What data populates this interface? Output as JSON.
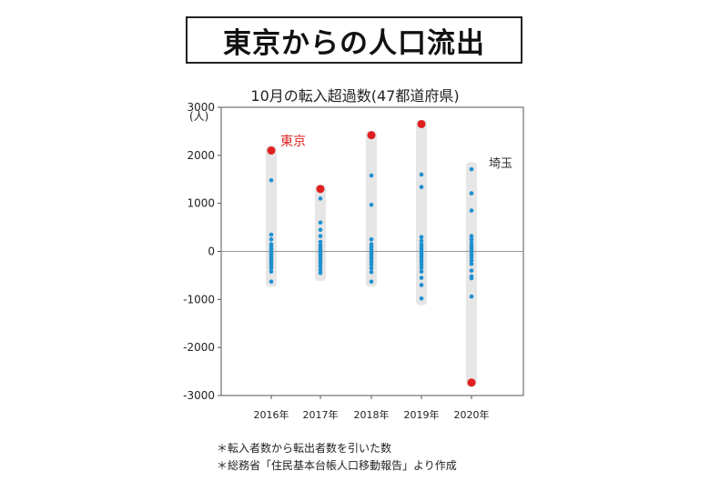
{
  "header": {
    "title": "東京からの人口流出",
    "subtitle": "10月の転入超過数(47都道府県)"
  },
  "chart_data": {
    "type": "scatter",
    "title": "10月の転入超過数(47都道府県)",
    "ylabel": "(人)",
    "xlabel": "",
    "ylim": [
      -3000,
      3000
    ],
    "yticks": [
      3000,
      2000,
      1000,
      0,
      -1000,
      -2000,
      -3000
    ],
    "categories": [
      "2016年",
      "2017年",
      "2018年",
      "2019年",
      "2020年"
    ],
    "grid": false,
    "zero_line": true,
    "range_bars": [
      {
        "category": "2016年",
        "min": -680,
        "max": 2150
      },
      {
        "category": "2017年",
        "min": -560,
        "max": 1330
      },
      {
        "category": "2018年",
        "min": -680,
        "max": 2450
      },
      {
        "category": "2019年",
        "min": -1060,
        "max": 2680
      },
      {
        "category": "2020年",
        "min": -2760,
        "max": 1800
      }
    ],
    "series": [
      {
        "name": "東京",
        "color": "#e02020",
        "values": [
          2100,
          1300,
          2420,
          2650,
          -2730
        ]
      },
      {
        "color": "#1e90d0",
        "points": [
          {
            "category": "2016年",
            "values": [
              1480,
              350,
              250,
              150,
              100,
              50,
              0,
              -30,
              -60,
              -100,
              -140,
              -180,
              -220,
              -260,
              -300,
              -350,
              -420,
              -630
            ]
          },
          {
            "category": "2017年",
            "values": [
              1100,
              600,
              450,
              320,
              200,
              130,
              80,
              30,
              -20,
              -60,
              -100,
              -150,
              -200,
              -260,
              -320,
              -380,
              -450
            ]
          },
          {
            "category": "2018年",
            "values": [
              1580,
              970,
              250,
              150,
              90,
              40,
              -10,
              -50,
              -90,
              -130,
              -170,
              -220,
              -280,
              -350,
              -430,
              -630
            ]
          },
          {
            "category": "2019年",
            "values": [
              1600,
              1340,
              300,
              220,
              150,
              100,
              50,
              0,
              -40,
              -80,
              -120,
              -170,
              -220,
              -280,
              -340,
              -420,
              -550,
              -700,
              -980
            ]
          },
          {
            "category": "2020年",
            "values": [
              1710,
              1210,
              850,
              320,
              250,
              180,
              120,
              70,
              20,
              -30,
              -80,
              -130,
              -190,
              -260,
              -400,
              -520,
              -560,
              -940
            ]
          }
        ]
      }
    ],
    "annotations": [
      {
        "text": "東京",
        "color": "#e02020"
      },
      {
        "text": "埼玉",
        "color": "#333333"
      }
    ]
  },
  "notes": [
    "＊転入者数から転出者数を引いた数",
    "＊総務省「住民基本台帳人口移動報告」より作成"
  ]
}
